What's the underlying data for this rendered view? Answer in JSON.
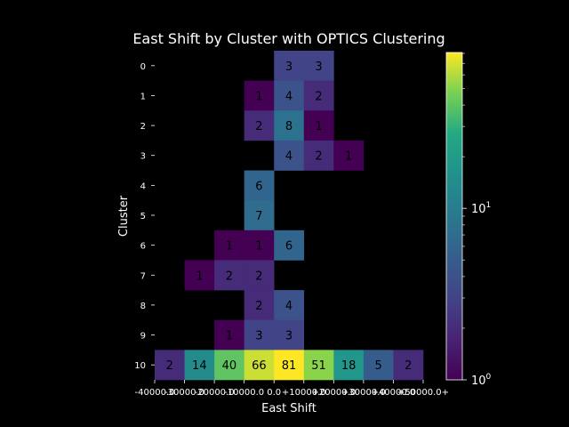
{
  "chart_data": {
    "type": "heatmap",
    "title": "East Shift by Cluster with OPTICS Clustering",
    "xlabel": "East Shift",
    "ylabel": "Cluster",
    "x_tick_labels": [
      "-40000.0",
      "-30000.0",
      "-20000.0",
      "-10000.0",
      "0.0",
      "+10000.0",
      "+20000.0",
      "+30000.0",
      "+40000.0",
      "+50000.0+"
    ],
    "y_tick_labels": [
      "0",
      "1",
      "2",
      "3",
      "4",
      "5",
      "6",
      "7",
      "8",
      "9",
      "10"
    ],
    "colormap": "viridis",
    "color_scale": "log",
    "colorbar_range": [
      1,
      81
    ],
    "colorbar_tick_labels": [
      {
        "value": 1,
        "base": "10",
        "exp": "0"
      },
      {
        "value": 10,
        "base": "10",
        "exp": "1"
      }
    ],
    "cells": [
      {
        "row": 0,
        "col": 4,
        "value": 3
      },
      {
        "row": 0,
        "col": 5,
        "value": 3
      },
      {
        "row": 1,
        "col": 3,
        "value": 1
      },
      {
        "row": 1,
        "col": 4,
        "value": 4
      },
      {
        "row": 1,
        "col": 5,
        "value": 2
      },
      {
        "row": 2,
        "col": 3,
        "value": 2
      },
      {
        "row": 2,
        "col": 4,
        "value": 8
      },
      {
        "row": 2,
        "col": 5,
        "value": 1
      },
      {
        "row": 3,
        "col": 4,
        "value": 4
      },
      {
        "row": 3,
        "col": 5,
        "value": 2
      },
      {
        "row": 3,
        "col": 6,
        "value": 1
      },
      {
        "row": 4,
        "col": 3,
        "value": 6
      },
      {
        "row": 5,
        "col": 3,
        "value": 7
      },
      {
        "row": 6,
        "col": 2,
        "value": 1
      },
      {
        "row": 6,
        "col": 3,
        "value": 1
      },
      {
        "row": 6,
        "col": 4,
        "value": 6
      },
      {
        "row": 7,
        "col": 1,
        "value": 1
      },
      {
        "row": 7,
        "col": 2,
        "value": 2
      },
      {
        "row": 7,
        "col": 3,
        "value": 2
      },
      {
        "row": 8,
        "col": 3,
        "value": 2
      },
      {
        "row": 8,
        "col": 4,
        "value": 4
      },
      {
        "row": 9,
        "col": 2,
        "value": 1
      },
      {
        "row": 9,
        "col": 3,
        "value": 3
      },
      {
        "row": 9,
        "col": 4,
        "value": 3
      },
      {
        "row": 10,
        "col": 0,
        "value": 2
      },
      {
        "row": 10,
        "col": 1,
        "value": 14
      },
      {
        "row": 10,
        "col": 2,
        "value": 40
      },
      {
        "row": 10,
        "col": 3,
        "value": 66
      },
      {
        "row": 10,
        "col": 4,
        "value": 81
      },
      {
        "row": 10,
        "col": 5,
        "value": 51
      },
      {
        "row": 10,
        "col": 6,
        "value": 18
      },
      {
        "row": 10,
        "col": 7,
        "value": 5
      },
      {
        "row": 10,
        "col": 8,
        "value": 2
      }
    ]
  }
}
